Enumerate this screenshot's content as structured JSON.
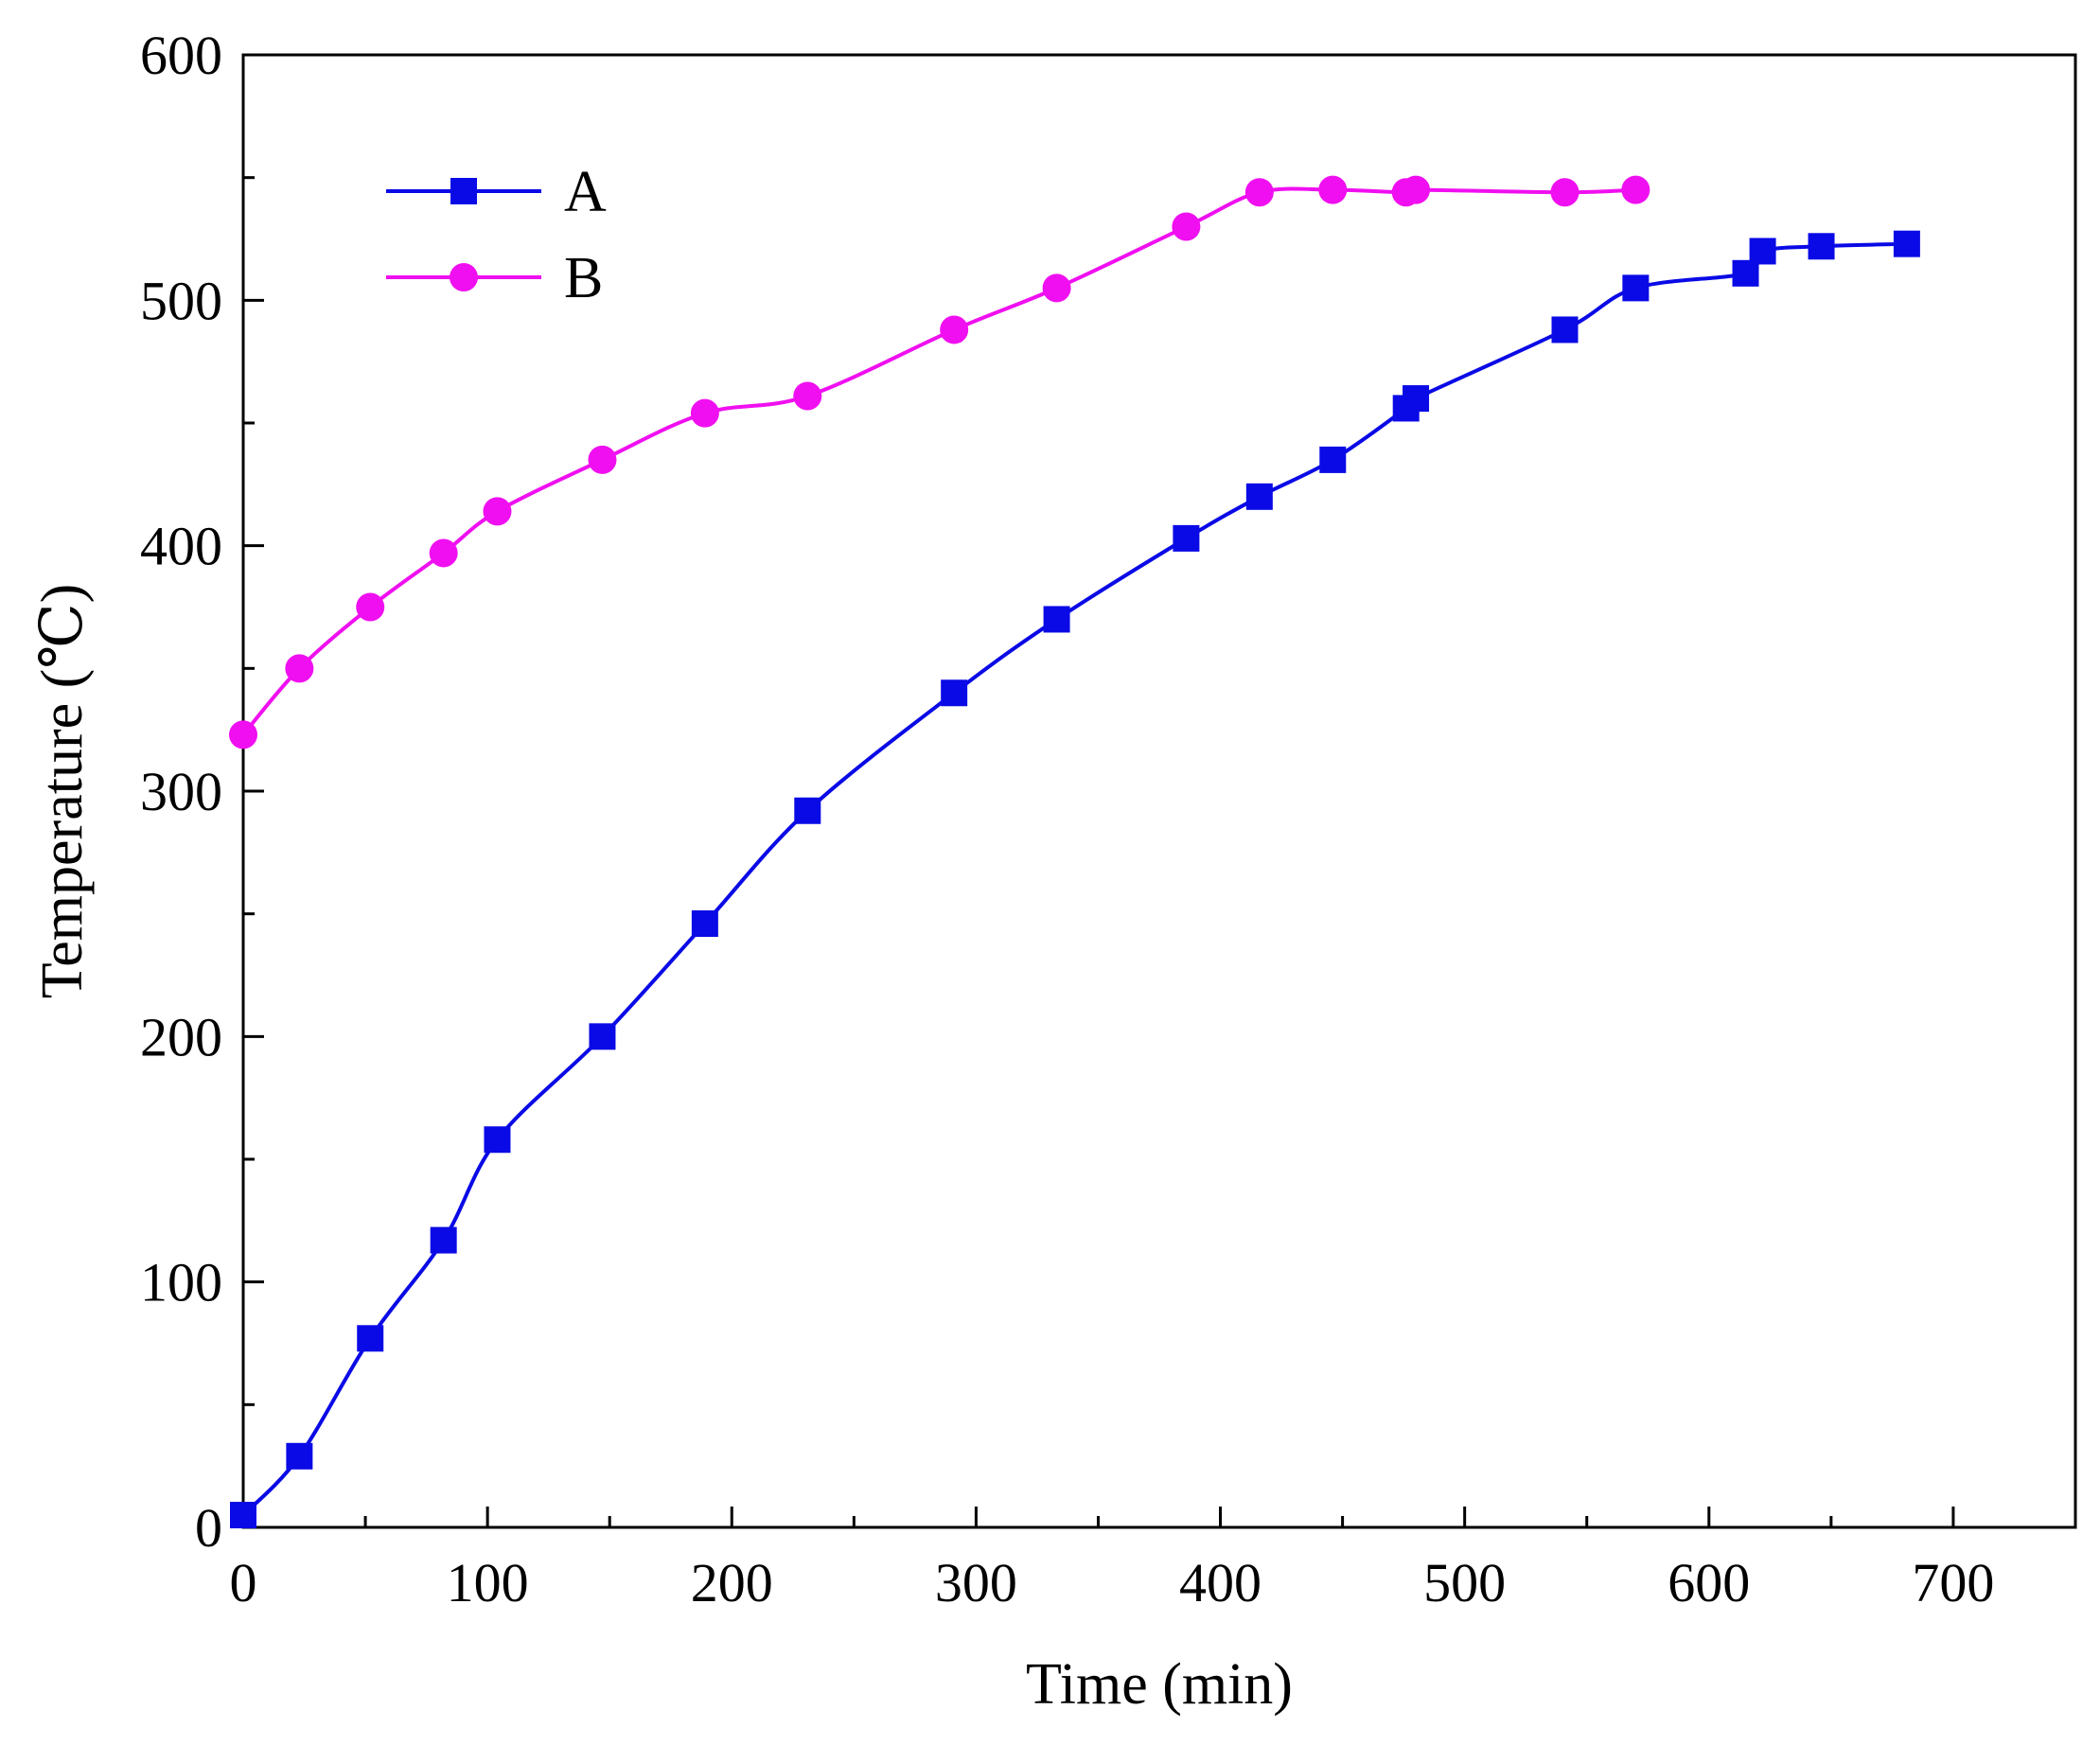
{
  "chart_data": {
    "type": "line",
    "title": "",
    "xlabel": "Time (min)",
    "ylabel": "Temperature (℃)",
    "xlim": [
      0,
      750
    ],
    "ylim": [
      0,
      600
    ],
    "x_ticks": [
      0,
      100,
      200,
      300,
      400,
      500,
      600,
      700
    ],
    "x_tick_labels": [
      "0",
      "100",
      "200",
      "300",
      "400",
      "500",
      "600",
      "700"
    ],
    "x_minor_step": 50,
    "y_ticks": [
      0,
      100,
      200,
      300,
      400,
      500,
      600
    ],
    "y_tick_labels": [
      "0",
      "100",
      "200",
      "300",
      "400",
      "500",
      "600"
    ],
    "y_minor_step": 50,
    "grid": false,
    "legend_position": "top-left",
    "series": [
      {
        "name": "A",
        "marker": "square",
        "color": "#0a0ae6",
        "x": [
          0,
          23,
          52,
          82,
          104,
          147,
          189,
          231,
          291,
          333,
          386,
          416,
          446,
          476,
          480,
          541,
          570,
          615,
          622,
          646,
          681
        ],
        "y": [
          5,
          29,
          77,
          117,
          158,
          200,
          246,
          292,
          340,
          370,
          403,
          420,
          435,
          456,
          460,
          488,
          505,
          511,
          520,
          522,
          523
        ]
      },
      {
        "name": "B",
        "marker": "circle",
        "color": "#f00ff0",
        "x": [
          0,
          23,
          52,
          82,
          104,
          147,
          189,
          231,
          291,
          333,
          386,
          416,
          446,
          476,
          480,
          541,
          570
        ],
        "y": [
          323,
          350,
          375,
          397,
          414,
          435,
          454,
          461,
          488,
          505,
          530,
          544,
          545,
          544,
          545,
          544,
          545
        ]
      }
    ]
  }
}
